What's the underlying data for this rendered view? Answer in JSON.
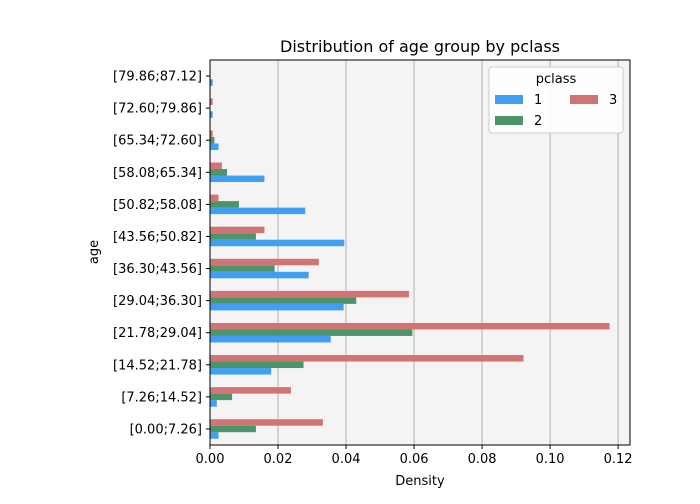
{
  "chart_data": {
    "type": "bar",
    "orientation": "horizontal",
    "title": "Distribution of age group by pclass",
    "xlabel": "Density",
    "ylabel": "age",
    "xlim": [
      0,
      0.1235
    ],
    "xticks": [
      0.0,
      0.02,
      0.04,
      0.06,
      0.08,
      0.1,
      0.12
    ],
    "xtick_labels": [
      "0.00",
      "0.02",
      "0.04",
      "0.06",
      "0.08",
      "0.10",
      "0.12"
    ],
    "grid": "vertical",
    "background": "#f4f4f4",
    "categories": [
      "[0.00;7.26]",
      "[7.26;14.52]",
      "[14.52;21.78]",
      "[21.78;29.04]",
      "[29.04;36.30]",
      "[36.30;43.56]",
      "[43.56;50.82]",
      "[50.82;58.08]",
      "[58.08;65.34]",
      "[65.34;72.60]",
      "[72.60;79.86]",
      "[79.86;87.12]"
    ],
    "legend": {
      "title": "pclass",
      "placement": "upper right"
    },
    "series": [
      {
        "name": "1",
        "color": "#409ff2",
        "values": [
          0.0025,
          0.002,
          0.018,
          0.0355,
          0.0393,
          0.029,
          0.0395,
          0.028,
          0.016,
          0.0025,
          0.0008,
          0.0008
        ]
      },
      {
        "name": "2",
        "color": "#4d946a",
        "values": [
          0.0135,
          0.0065,
          0.0275,
          0.0595,
          0.043,
          0.019,
          0.0135,
          0.0085,
          0.005,
          0.0013,
          0.0,
          0.0
        ]
      },
      {
        "name": "3",
        "color": "#d17474",
        "values": [
          0.0332,
          0.0238,
          0.0922,
          0.1175,
          0.0585,
          0.032,
          0.016,
          0.0025,
          0.0035,
          0.0008,
          0.0008,
          0.0
        ]
      }
    ]
  }
}
